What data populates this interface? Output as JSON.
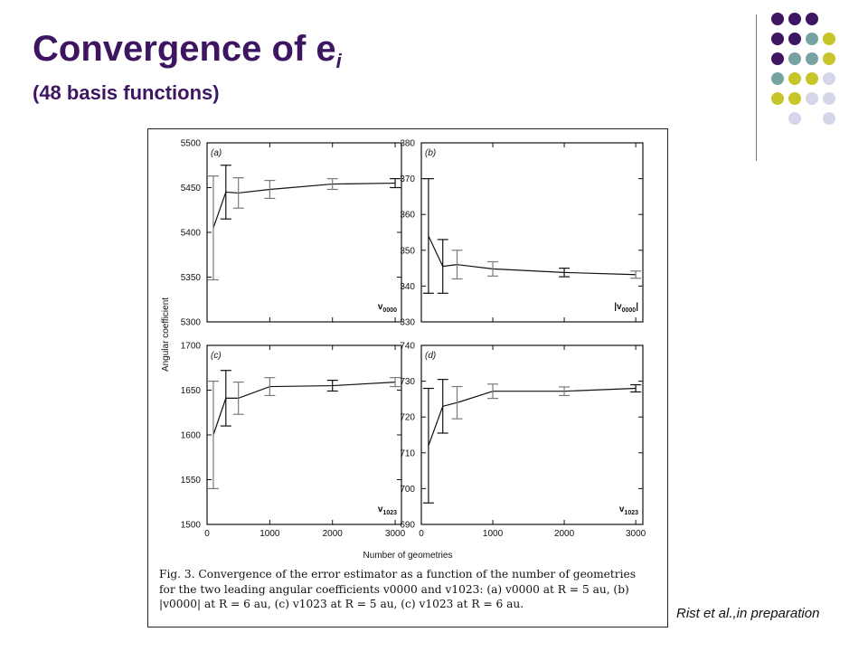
{
  "slide": {
    "title_main": "Convergence of e",
    "title_sub": "i",
    "subtitle": "(48 basis functions)",
    "citation": "Rist et al.,in preparation",
    "dot_colors": {
      "purple": "#3d1561",
      "teal": "#76a3a1",
      "olive": "#c6c52a",
      "lavender": "#d6d6ea"
    }
  },
  "figure": {
    "caption_lines": [
      "Fig. 3. Convergence of the error estimator as a function of the number of geometries",
      "for the two leading angular coefficients v0000 and v1023: (a) v0000 at R = 5 au, (b)",
      "|v0000| at R = 6 au, (c) v1023 at R = 5 au, (c) v1023 at R = 6 au."
    ]
  },
  "chart_data": [
    {
      "type": "line",
      "panel": "(a)",
      "series_label": "v",
      "series_label_sub": "0000",
      "ylabel": "Angular coefficient",
      "xlabel": "",
      "xlim": [
        0,
        3100
      ],
      "ylim": [
        5300,
        5500
      ],
      "yticks": [
        5300,
        5350,
        5400,
        5450,
        5500
      ],
      "xticks": [],
      "x": [
        100,
        300,
        500,
        1000,
        2000,
        3000
      ],
      "y": [
        5405,
        5445,
        5444,
        5448,
        5454,
        5455
      ],
      "err": [
        58,
        30,
        17,
        10,
        6,
        5
      ],
      "err_grey": [
        true,
        false,
        true,
        true,
        true,
        false
      ]
    },
    {
      "type": "line",
      "panel": "(b)",
      "series_label": "|v",
      "series_label_sub": "0000",
      "series_label_suffix": "|",
      "ylabel": "",
      "xlabel": "",
      "xlim": [
        0,
        3100
      ],
      "ylim": [
        330,
        380
      ],
      "yticks": [
        330,
        340,
        350,
        360,
        370,
        380
      ],
      "xticks": [],
      "x": [
        100,
        300,
        500,
        1000,
        2000,
        3000
      ],
      "y": [
        354,
        345.5,
        346,
        344.8,
        343.8,
        343.2
      ],
      "err": [
        16,
        7.5,
        4,
        2,
        1.2,
        1
      ],
      "err_grey": [
        false,
        false,
        true,
        true,
        false,
        true
      ]
    },
    {
      "type": "line",
      "panel": "(c)",
      "series_label": "v",
      "series_label_sub": "1023",
      "ylabel": "",
      "xlabel": "",
      "xlim": [
        0,
        3100
      ],
      "ylim": [
        1500,
        1700
      ],
      "yticks": [
        1500,
        1550,
        1600,
        1650,
        1700
      ],
      "xticks": [
        0,
        1000,
        2000,
        3000
      ],
      "x": [
        100,
        300,
        500,
        1000,
        2000,
        3000
      ],
      "y": [
        1600,
        1641,
        1641,
        1654,
        1655,
        1659
      ],
      "err": [
        60,
        31,
        18,
        10,
        6,
        5
      ],
      "err_grey": [
        true,
        false,
        true,
        true,
        false,
        true
      ]
    },
    {
      "type": "line",
      "panel": "(d)",
      "series_label": "v",
      "series_label_sub": "1023",
      "ylabel": "",
      "xlabel": "Number of geometries",
      "xlim": [
        0,
        3100
      ],
      "ylim": [
        690,
        740
      ],
      "yticks": [
        690,
        700,
        710,
        720,
        730,
        740
      ],
      "xticks": [
        0,
        1000,
        2000,
        3000
      ],
      "x": [
        100,
        300,
        500,
        1000,
        2000,
        3000
      ],
      "y": [
        712,
        723,
        724,
        727.2,
        727.2,
        728
      ],
      "err": [
        16,
        7.5,
        4.5,
        2,
        1.2,
        1
      ],
      "err_grey": [
        false,
        false,
        true,
        true,
        true,
        false
      ]
    }
  ]
}
